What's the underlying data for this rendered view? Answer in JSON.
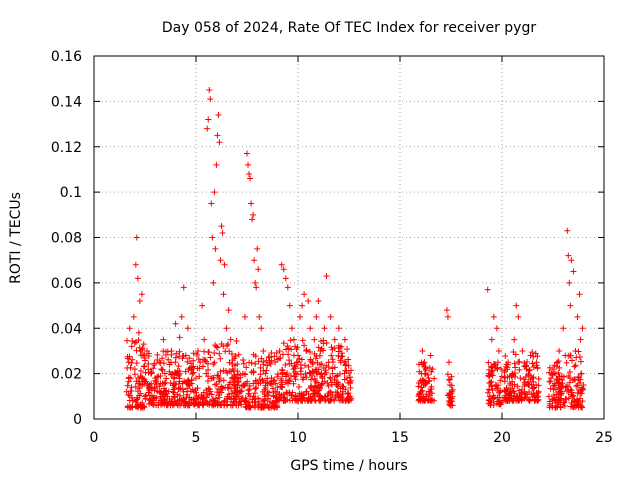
{
  "chart_data": {
    "type": "scatter",
    "title": "Day 058 of 2024, Rate Of TEC Index for receiver pygr",
    "xlabel": "GPS time / hours",
    "ylabel": "ROTI / TECUs",
    "xlim": [
      0,
      25
    ],
    "ylim": [
      0,
      0.16
    ],
    "x_ticks": [
      0,
      5,
      10,
      15,
      20,
      25
    ],
    "x_tick_labels": [
      "0",
      "5",
      "10",
      "15",
      "20",
      "25"
    ],
    "y_ticks": [
      0,
      0.02,
      0.04,
      0.06,
      0.08,
      0.1,
      0.12,
      0.14,
      0.16
    ],
    "y_tick_labels": [
      "0",
      "0.02",
      "0.04",
      "0.06",
      "0.08",
      "0.1",
      "0.12",
      "0.14",
      "0.16"
    ],
    "grid": true,
    "marker": "+",
    "marker_color": "#ff0000",
    "series": [
      {
        "name": "ROTI",
        "points": [
          [
            1.6,
            0.012
          ],
          [
            1.7,
            0.025
          ],
          [
            1.75,
            0.04
          ],
          [
            1.8,
            0.018
          ],
          [
            1.85,
            0.032
          ],
          [
            1.9,
            0.008
          ],
          [
            1.95,
            0.045
          ],
          [
            2.0,
            0.022
          ],
          [
            2.05,
            0.068
          ],
          [
            2.1,
            0.08
          ],
          [
            2.15,
            0.062
          ],
          [
            2.2,
            0.038
          ],
          [
            2.25,
            0.052
          ],
          [
            2.3,
            0.015
          ],
          [
            2.35,
            0.055
          ],
          [
            2.4,
            0.028
          ],
          [
            2.5,
            0.01
          ],
          [
            2.6,
            0.03
          ],
          [
            2.7,
            0.014
          ],
          [
            2.8,
            0.02
          ],
          [
            2.9,
            0.009
          ],
          [
            3.0,
            0.018
          ],
          [
            3.1,
            0.026
          ],
          [
            3.2,
            0.012
          ],
          [
            3.3,
            0.022
          ],
          [
            3.4,
            0.035
          ],
          [
            3.5,
            0.016
          ],
          [
            3.6,
            0.01
          ],
          [
            3.7,
            0.024
          ],
          [
            3.8,
            0.03
          ],
          [
            3.9,
            0.013
          ],
          [
            4.0,
            0.042
          ],
          [
            4.1,
            0.02
          ],
          [
            4.2,
            0.036
          ],
          [
            4.3,
            0.045
          ],
          [
            4.4,
            0.058
          ],
          [
            4.5,
            0.028
          ],
          [
            4.6,
            0.04
          ],
          [
            4.7,
            0.015
          ],
          [
            4.8,
            0.022
          ],
          [
            4.9,
            0.012
          ],
          [
            5.0,
            0.018
          ],
          [
            5.1,
            0.03
          ],
          [
            5.2,
            0.025
          ],
          [
            5.3,
            0.05
          ],
          [
            5.4,
            0.035
          ],
          [
            5.5,
            0.02
          ],
          [
            5.55,
            0.128
          ],
          [
            5.6,
            0.132
          ],
          [
            5.65,
            0.145
          ],
          [
            5.7,
            0.141
          ],
          [
            5.75,
            0.095
          ],
          [
            5.8,
            0.08
          ],
          [
            5.85,
            0.06
          ],
          [
            5.9,
            0.1
          ],
          [
            5.95,
            0.075
          ],
          [
            6.0,
            0.112
          ],
          [
            6.05,
            0.125
          ],
          [
            6.1,
            0.134
          ],
          [
            6.15,
            0.122
          ],
          [
            6.2,
            0.07
          ],
          [
            6.25,
            0.085
          ],
          [
            6.3,
            0.082
          ],
          [
            6.35,
            0.055
          ],
          [
            6.4,
            0.068
          ],
          [
            6.5,
            0.04
          ],
          [
            6.6,
            0.048
          ],
          [
            6.7,
            0.035
          ],
          [
            6.8,
            0.022
          ],
          [
            6.9,
            0.015
          ],
          [
            7.0,
            0.018
          ],
          [
            7.1,
            0.01
          ],
          [
            7.2,
            0.012
          ],
          [
            7.3,
            0.02
          ],
          [
            7.4,
            0.045
          ],
          [
            7.5,
            0.117
          ],
          [
            7.55,
            0.112
          ],
          [
            7.6,
            0.108
          ],
          [
            7.65,
            0.106
          ],
          [
            7.7,
            0.095
          ],
          [
            7.75,
            0.088
          ],
          [
            7.8,
            0.09
          ],
          [
            7.85,
            0.07
          ],
          [
            7.9,
            0.06
          ],
          [
            7.95,
            0.058
          ],
          [
            8.0,
            0.075
          ],
          [
            8.05,
            0.066
          ],
          [
            8.1,
            0.045
          ],
          [
            8.2,
            0.04
          ],
          [
            8.3,
            0.03
          ],
          [
            8.4,
            0.02
          ],
          [
            8.5,
            0.012
          ],
          [
            8.6,
            0.025
          ],
          [
            8.7,
            0.018
          ],
          [
            8.8,
            0.01
          ],
          [
            8.9,
            0.008
          ],
          [
            9.0,
            0.014
          ],
          [
            9.1,
            0.03
          ],
          [
            9.2,
            0.068
          ],
          [
            9.3,
            0.066
          ],
          [
            9.4,
            0.062
          ],
          [
            9.5,
            0.058
          ],
          [
            9.6,
            0.05
          ],
          [
            9.7,
            0.04
          ],
          [
            9.8,
            0.035
          ],
          [
            9.9,
            0.02
          ],
          [
            10.0,
            0.028
          ],
          [
            10.1,
            0.045
          ],
          [
            10.2,
            0.05
          ],
          [
            10.3,
            0.055
          ],
          [
            10.4,
            0.03
          ],
          [
            10.5,
            0.052
          ],
          [
            10.6,
            0.04
          ],
          [
            10.7,
            0.025
          ],
          [
            10.8,
            0.035
          ],
          [
            10.9,
            0.045
          ],
          [
            11.0,
            0.052
          ],
          [
            11.1,
            0.03
          ],
          [
            11.2,
            0.018
          ],
          [
            11.3,
            0.04
          ],
          [
            11.4,
            0.063
          ],
          [
            11.5,
            0.025
          ],
          [
            11.6,
            0.045
          ],
          [
            11.7,
            0.02
          ],
          [
            11.8,
            0.035
          ],
          [
            11.9,
            0.015
          ],
          [
            12.0,
            0.04
          ],
          [
            12.1,
            0.025
          ],
          [
            12.2,
            0.012
          ],
          [
            12.3,
            0.035
          ],
          [
            12.4,
            0.018
          ],
          [
            12.5,
            0.01
          ],
          [
            16.0,
            0.012
          ],
          [
            16.05,
            0.02
          ],
          [
            16.1,
            0.03
          ],
          [
            16.15,
            0.015
          ],
          [
            16.2,
            0.025
          ],
          [
            16.3,
            0.01
          ],
          [
            16.4,
            0.018
          ],
          [
            16.5,
            0.028
          ],
          [
            16.6,
            0.022
          ],
          [
            17.3,
            0.048
          ],
          [
            17.35,
            0.045
          ],
          [
            17.4,
            0.025
          ],
          [
            17.45,
            0.015
          ],
          [
            17.5,
            0.008
          ],
          [
            17.55,
            0.012
          ],
          [
            19.3,
            0.057
          ],
          [
            19.35,
            0.02
          ],
          [
            19.4,
            0.01
          ],
          [
            19.5,
            0.035
          ],
          [
            19.6,
            0.045
          ],
          [
            19.7,
            0.015
          ],
          [
            19.75,
            0.04
          ],
          [
            19.8,
            0.025
          ],
          [
            19.85,
            0.03
          ],
          [
            19.9,
            0.008
          ],
          [
            19.95,
            0.022
          ],
          [
            20.2,
            0.012
          ],
          [
            20.3,
            0.025
          ],
          [
            20.4,
            0.015
          ],
          [
            20.5,
            0.02
          ],
          [
            20.6,
            0.035
          ],
          [
            20.7,
            0.05
          ],
          [
            20.8,
            0.045
          ],
          [
            20.9,
            0.018
          ],
          [
            21.0,
            0.03
          ],
          [
            21.1,
            0.012
          ],
          [
            21.2,
            0.022
          ],
          [
            21.3,
            0.015
          ],
          [
            21.4,
            0.028
          ],
          [
            21.5,
            0.018
          ],
          [
            21.6,
            0.01
          ],
          [
            21.7,
            0.025
          ],
          [
            21.8,
            0.012
          ],
          [
            22.3,
            0.01
          ],
          [
            22.4,
            0.018
          ],
          [
            22.5,
            0.022
          ],
          [
            22.6,
            0.008
          ],
          [
            22.7,
            0.025
          ],
          [
            22.8,
            0.03
          ],
          [
            22.9,
            0.015
          ],
          [
            23.0,
            0.04
          ],
          [
            23.1,
            0.028
          ],
          [
            23.2,
            0.083
          ],
          [
            23.25,
            0.072
          ],
          [
            23.3,
            0.06
          ],
          [
            23.35,
            0.05
          ],
          [
            23.4,
            0.07
          ],
          [
            23.5,
            0.065
          ],
          [
            23.6,
            0.03
          ],
          [
            23.7,
            0.045
          ],
          [
            23.8,
            0.055
          ],
          [
            23.85,
            0.035
          ],
          [
            23.9,
            0.02
          ],
          [
            23.95,
            0.04
          ],
          [
            24.0,
            0.015
          ]
        ]
      }
    ],
    "dense_bands": [
      {
        "x_range": [
          1.6,
          2.6
        ],
        "y_range": [
          0.005,
          0.035
        ]
      },
      {
        "x_range": [
          2.6,
          5.5
        ],
        "y_range": [
          0.006,
          0.03
        ]
      },
      {
        "x_range": [
          5.5,
          7.4
        ],
        "y_range": [
          0.006,
          0.035
        ]
      },
      {
        "x_range": [
          7.4,
          9.0
        ],
        "y_range": [
          0.005,
          0.03
        ]
      },
      {
        "x_range": [
          9.0,
          12.6
        ],
        "y_range": [
          0.008,
          0.035
        ]
      },
      {
        "x_range": [
          15.9,
          16.7
        ],
        "y_range": [
          0.008,
          0.025
        ]
      },
      {
        "x_range": [
          17.3,
          17.6
        ],
        "y_range": [
          0.006,
          0.02
        ]
      },
      {
        "x_range": [
          19.3,
          20.0
        ],
        "y_range": [
          0.006,
          0.025
        ]
      },
      {
        "x_range": [
          20.1,
          21.8
        ],
        "y_range": [
          0.008,
          0.03
        ]
      },
      {
        "x_range": [
          22.3,
          24.0
        ],
        "y_range": [
          0.005,
          0.03
        ]
      }
    ]
  }
}
